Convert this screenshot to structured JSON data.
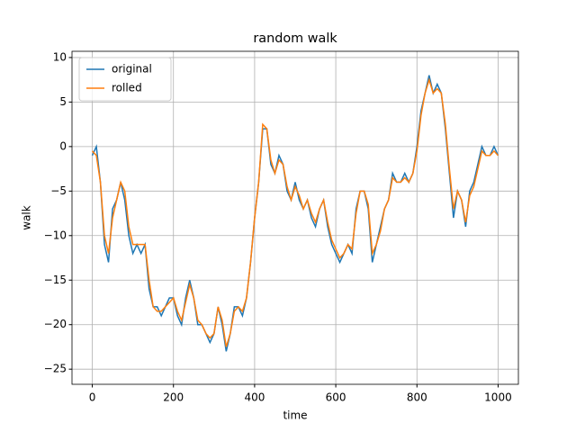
{
  "chart_data": {
    "type": "line",
    "title": "random walk",
    "x_label": "time",
    "y_label": "walk",
    "x": [
      0,
      10,
      20,
      30,
      40,
      50,
      60,
      70,
      80,
      90,
      100,
      110,
      120,
      130,
      140,
      150,
      160,
      170,
      180,
      190,
      200,
      210,
      220,
      230,
      240,
      250,
      260,
      270,
      280,
      290,
      300,
      310,
      320,
      330,
      340,
      350,
      360,
      370,
      380,
      390,
      400,
      410,
      420,
      430,
      440,
      450,
      460,
      470,
      480,
      490,
      500,
      510,
      520,
      530,
      540,
      550,
      560,
      570,
      580,
      590,
      600,
      610,
      620,
      630,
      640,
      650,
      660,
      670,
      680,
      690,
      700,
      710,
      720,
      730,
      740,
      750,
      760,
      770,
      780,
      790,
      800,
      810,
      820,
      830,
      840,
      850,
      860,
      870,
      880,
      890,
      900,
      910,
      920,
      930,
      940,
      950,
      960,
      970,
      980,
      990,
      1000
    ],
    "series": [
      {
        "name": "original",
        "color": "#1f77b4",
        "values": [
          -1,
          0,
          -4,
          -11,
          -13,
          -7,
          -6,
          -4,
          -6,
          -10,
          -12,
          -11,
          -12,
          -11,
          -16,
          -18,
          -18,
          -19,
          -18,
          -17,
          -17,
          -19,
          -20,
          -17,
          -15,
          -17,
          -20,
          -20,
          -21,
          -22,
          -21,
          -18,
          -20,
          -23,
          -21,
          -18,
          -18,
          -19,
          -17,
          -13,
          -8,
          -4,
          2,
          2,
          -2,
          -3,
          -1,
          -2,
          -5,
          -6,
          -4,
          -6,
          -7,
          -6,
          -8,
          -9,
          -7,
          -6,
          -9,
          -11,
          -12,
          -13,
          -12,
          -11,
          -12,
          -7,
          -5,
          -5,
          -7,
          -13,
          -11,
          -9,
          -7,
          -6,
          -3,
          -4,
          -4,
          -3,
          -4,
          -3,
          0,
          4,
          6,
          8,
          6,
          7,
          6,
          2,
          -3,
          -8,
          -5,
          -6,
          -9,
          -5,
          -4,
          -2,
          0,
          -1,
          -1,
          0,
          -1
        ]
      },
      {
        "name": "rolled",
        "color": "#ff7f0e",
        "values": [
          -0.5,
          -1,
          -4,
          -10,
          -12,
          -8,
          -6,
          -4,
          -5,
          -9,
          -11,
          -11,
          -11,
          -11,
          -15,
          -18,
          -18.5,
          -18.5,
          -18,
          -17.5,
          -17,
          -18.5,
          -19.5,
          -17.5,
          -15.5,
          -17,
          -19.5,
          -20,
          -21,
          -21.5,
          -21,
          -18,
          -19.5,
          -22.5,
          -21,
          -18.5,
          -18,
          -18.5,
          -17,
          -13,
          -8,
          -4,
          2.5,
          2,
          -1.5,
          -3,
          -1.5,
          -2,
          -4.5,
          -6,
          -4.5,
          -5.5,
          -7,
          -6,
          -7.5,
          -8.5,
          -7,
          -6,
          -8.5,
          -10.5,
          -11.5,
          -12.5,
          -12,
          -11,
          -11.5,
          -7.5,
          -5,
          -5,
          -6.5,
          -12,
          -11,
          -9.5,
          -7,
          -6,
          -3.5,
          -4,
          -4,
          -3.5,
          -4,
          -3,
          -0.5,
          3.5,
          6,
          7.5,
          6,
          6.5,
          6,
          2.5,
          -2.5,
          -7,
          -5,
          -6,
          -8.5,
          -5.5,
          -4.5,
          -2.5,
          -0.5,
          -1,
          -1,
          -0.5,
          -1
        ]
      }
    ],
    "xlim": [
      -50,
      1050
    ],
    "ylim": [
      -26.7,
      10.7
    ],
    "xticks": [
      0,
      200,
      400,
      600,
      800,
      1000
    ],
    "yticks": [
      {
        "value": -25,
        "label": "−25"
      },
      {
        "value": -20,
        "label": "−20"
      },
      {
        "value": -15,
        "label": "−15"
      },
      {
        "value": -10,
        "label": "−10"
      },
      {
        "value": -5,
        "label": "−5"
      },
      0,
      5,
      10
    ],
    "grid": true,
    "legend": "upper left"
  }
}
